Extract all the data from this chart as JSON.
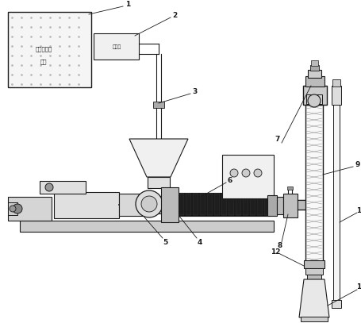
{
  "bg_color": "#ffffff",
  "lc": "#1a1a1a",
  "figsize": [
    4.56,
    4.07
  ],
  "dpi": 100,
  "xlim": [
    0,
    456
  ],
  "ylim": [
    0,
    407
  ]
}
